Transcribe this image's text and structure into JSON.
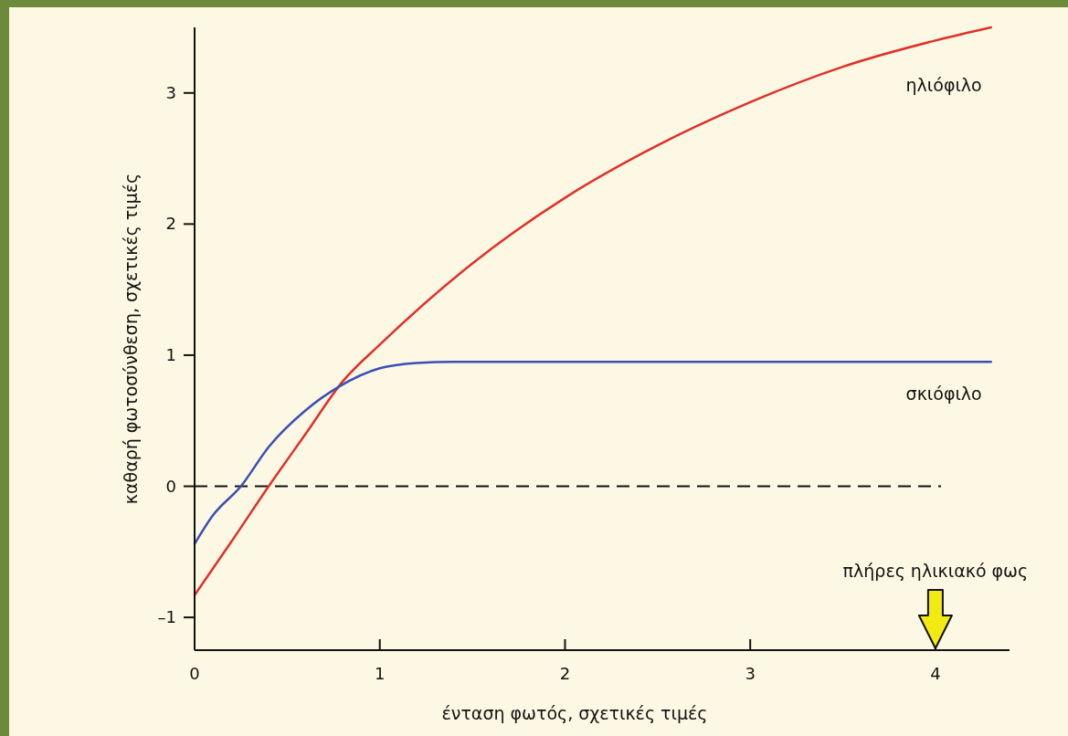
{
  "chart_data": {
    "type": "line",
    "xlabel": "ένταση φωτός, σχετικές τιμές",
    "ylabel": "καθαρή φωτοσύνθεση, σχετικές τιμές",
    "xlim": [
      0,
      4.4
    ],
    "ylim": [
      -1.25,
      3.5
    ],
    "xticks": [
      0,
      1,
      2,
      3,
      4
    ],
    "yticks": [
      {
        "value": -1,
        "label": "–1"
      },
      0,
      1,
      2,
      3
    ],
    "grid": false,
    "line_style": "solid",
    "marker": "none",
    "series": [
      {
        "name": "ηλιόφιλο",
        "color": "#e0302a",
        "x": [
          0,
          0.2,
          0.4,
          0.6,
          0.8,
          1.0,
          1.5,
          2,
          2.5,
          3,
          3.5,
          4,
          4.3
        ],
        "values": [
          -0.83,
          -0.42,
          0,
          0.4,
          0.8,
          1.08,
          1.7,
          2.2,
          2.6,
          2.93,
          3.2,
          3.4,
          3.5
        ]
      },
      {
        "name": "σκιόφιλο",
        "color": "#3a4fb5",
        "x": [
          0,
          0.1,
          0.25,
          0.4,
          0.6,
          0.78,
          1.0,
          1.2,
          1.4,
          2,
          3,
          4,
          4.3
        ],
        "values": [
          -0.44,
          -0.22,
          0,
          0.3,
          0.58,
          0.76,
          0.9,
          0.94,
          0.95,
          0.95,
          0.95,
          0.95,
          0.95
        ]
      }
    ],
    "ref_lines": [
      {
        "axis": "y",
        "value": 0,
        "color": "#111111",
        "line_style": "dashed"
      }
    ],
    "annotations": [
      "πλήρες ηλικιακό φως"
    ]
  }
}
